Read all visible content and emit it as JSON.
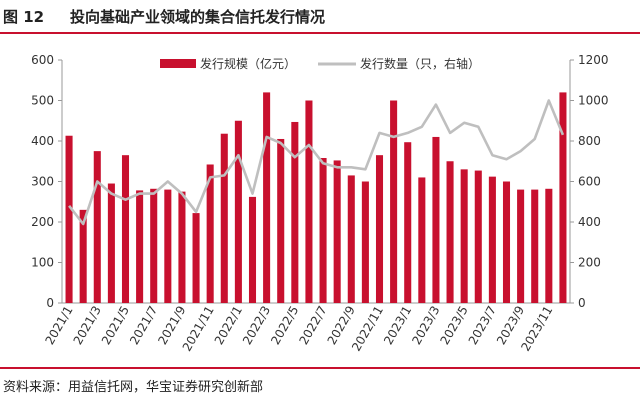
{
  "figure": {
    "number": "图 12",
    "title": "投向基础产业领域的集合信托发行情况",
    "source": "资料来源：用益信托网，华宝证券研究创新部"
  },
  "colors": {
    "bar": "#c8102e",
    "line": "#bfbfbf",
    "accent": "#c8102e"
  },
  "chart_data": {
    "type": "bar",
    "categories": [
      "2021/1",
      "2021/2",
      "2021/3",
      "2021/4",
      "2021/5",
      "2021/6",
      "2021/7",
      "2021/8",
      "2021/9",
      "2021/10",
      "2021/11",
      "2021/12",
      "2022/1",
      "2022/2",
      "2022/3",
      "2022/4",
      "2022/5",
      "2022/6",
      "2022/7",
      "2022/8",
      "2022/9",
      "2022/10",
      "2022/11",
      "2022/12",
      "2023/1",
      "2023/2",
      "2023/3",
      "2023/4",
      "2023/5",
      "2023/6",
      "2023/7",
      "2023/8",
      "2023/9",
      "2023/10",
      "2023/11",
      "2023/12"
    ],
    "x_tick_labels": [
      "2021/1",
      "2021/3",
      "2021/5",
      "2021/7",
      "2021/9",
      "2021/11",
      "2022/1",
      "2022/3",
      "2022/5",
      "2022/7",
      "2022/9",
      "2022/11",
      "2023/1",
      "2023/3",
      "2023/5",
      "2023/7",
      "2023/9",
      "2023/11"
    ],
    "series": [
      {
        "name": "发行规模（亿元）",
        "type": "bar",
        "axis": "left",
        "values": [
          413,
          230,
          375,
          295,
          365,
          278,
          282,
          280,
          275,
          222,
          342,
          418,
          450,
          262,
          520,
          405,
          447,
          500,
          358,
          352,
          315,
          300,
          365,
          500,
          397,
          310,
          410,
          350,
          330,
          327,
          312,
          300,
          280,
          280,
          282,
          520
        ]
      },
      {
        "name": "发行数量（只，右轴）",
        "type": "line",
        "axis": "right",
        "values": [
          480,
          390,
          600,
          540,
          510,
          540,
          540,
          600,
          540,
          450,
          620,
          630,
          730,
          540,
          820,
          790,
          720,
          780,
          690,
          670,
          670,
          660,
          840,
          820,
          840,
          870,
          980,
          840,
          890,
          870,
          730,
          710,
          750,
          810,
          1000,
          830
        ]
      }
    ],
    "y_left": {
      "lim": [
        0,
        600
      ],
      "ticks": [
        "0",
        "100",
        "200",
        "300",
        "400",
        "500",
        "600"
      ]
    },
    "y_right": {
      "lim": [
        0,
        1200
      ],
      "ticks": [
        "0",
        "200",
        "400",
        "600",
        "800",
        "1000",
        "1200"
      ]
    },
    "legend_position": "top-center",
    "grid": false
  }
}
